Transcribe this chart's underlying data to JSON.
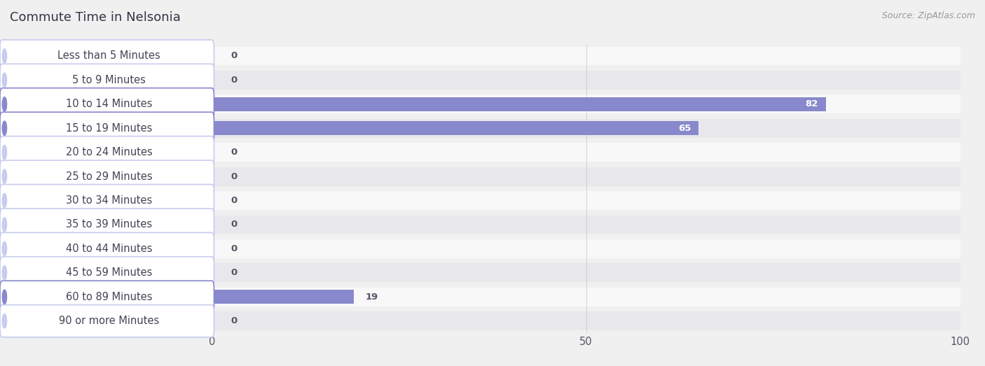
{
  "title": "Commute Time in Nelsonia",
  "source": "Source: ZipAtlas.com",
  "categories": [
    "Less than 5 Minutes",
    "5 to 9 Minutes",
    "10 to 14 Minutes",
    "15 to 19 Minutes",
    "20 to 24 Minutes",
    "25 to 29 Minutes",
    "30 to 34 Minutes",
    "35 to 39 Minutes",
    "40 to 44 Minutes",
    "45 to 59 Minutes",
    "60 to 89 Minutes",
    "90 or more Minutes"
  ],
  "values": [
    0,
    0,
    82,
    65,
    0,
    0,
    0,
    0,
    0,
    0,
    19,
    0
  ],
  "xlim": [
    0,
    100
  ],
  "xticks": [
    0,
    50,
    100
  ],
  "bar_color_active": "#8888cc",
  "bar_color_inactive": "#aab0dd",
  "pill_color_active": "#8888cc",
  "pill_color_inactive": "#c8ccee",
  "label_text_color": "#444455",
  "label_color_white": "#ffffff",
  "value_color_dark": "#555566",
  "bg_color": "#f0f0f0",
  "row_color_light": "#f8f8f8",
  "row_color_dark": "#e8e8ec",
  "title_color": "#333344",
  "source_color": "#999999",
  "title_fontsize": 13,
  "label_fontsize": 10.5,
  "value_fontsize": 9.5,
  "source_fontsize": 9
}
